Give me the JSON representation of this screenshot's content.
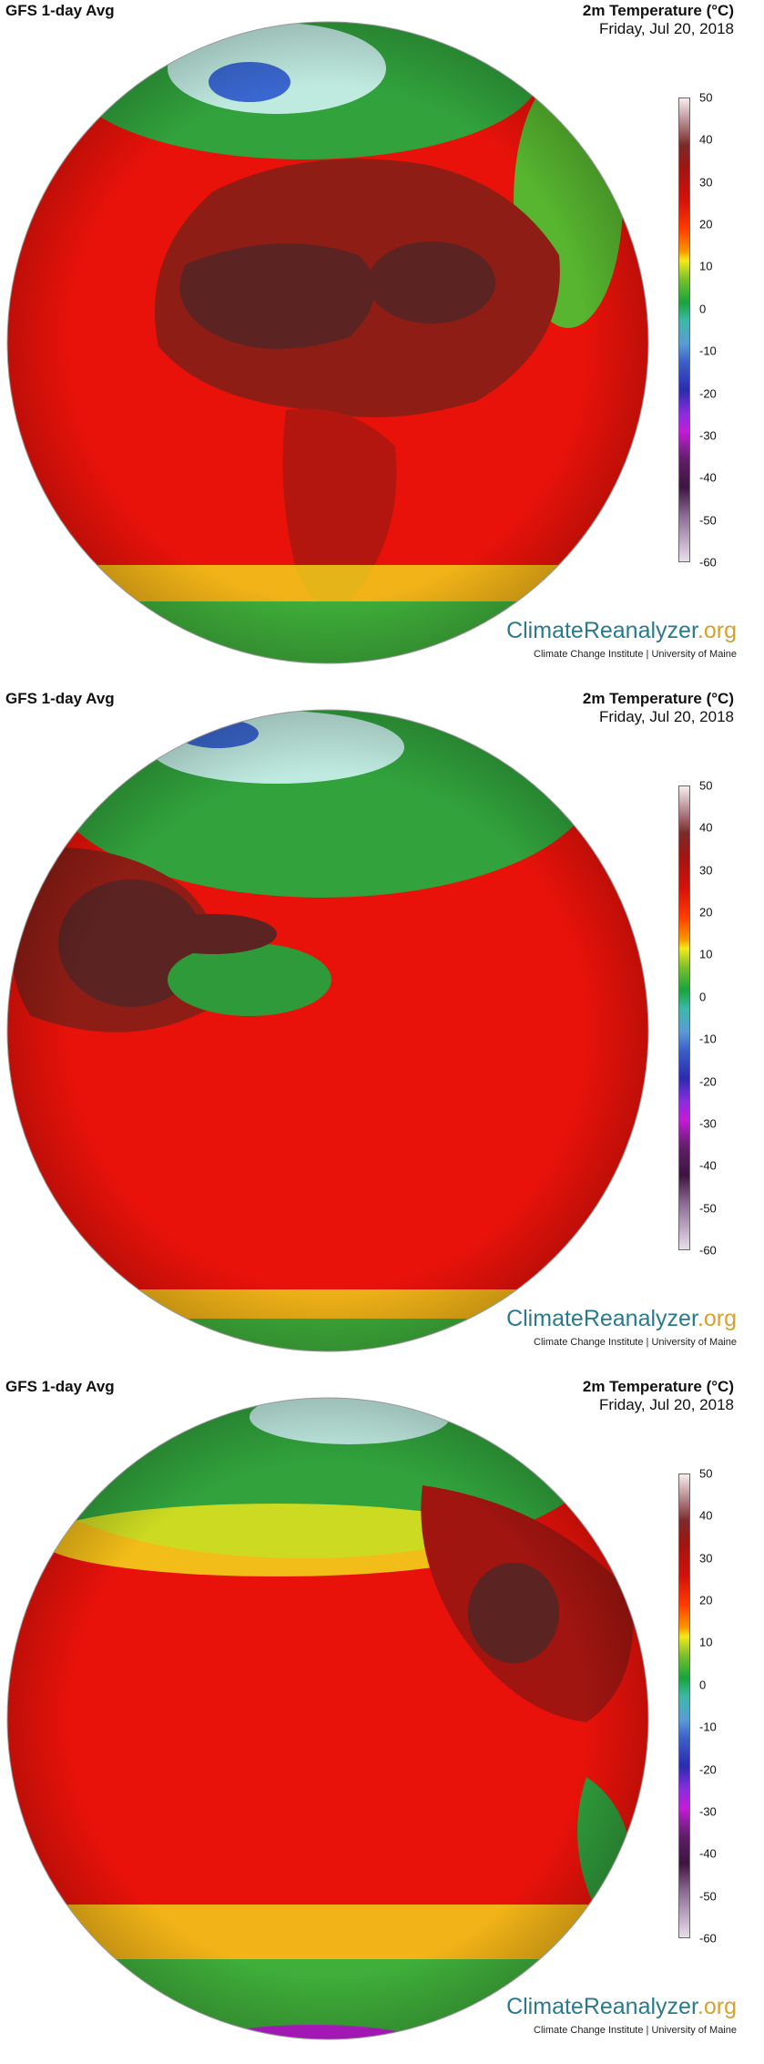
{
  "panels": [
    {
      "model_label": "GFS 1-day Avg",
      "variable_title": "2m Temperature (°C)",
      "date": "Friday, Jul 20, 2018",
      "brand_primary": "ClimateReanalyzer",
      "brand_suffix": ".org",
      "institution": "Climate Change Institute | University of Maine",
      "view": "europe-africa"
    },
    {
      "model_label": "GFS 1-day Avg",
      "variable_title": "2m Temperature (°C)",
      "date": "Friday, Jul 20, 2018",
      "brand_primary": "ClimateReanalyzer",
      "brand_suffix": ".org",
      "institution": "Climate Change Institute | University of Maine",
      "view": "asia"
    },
    {
      "model_label": "GFS 1-day Avg",
      "variable_title": "2m Temperature (°C)",
      "date": "Friday, Jul 20, 2018",
      "brand_primary": "ClimateReanalyzer",
      "brand_suffix": ".org",
      "institution": "Climate Change Institute | University of Maine",
      "view": "pacific-americas"
    }
  ],
  "colorbar": {
    "ticks": [
      "50",
      "40",
      "30",
      "20",
      "10",
      "0",
      "-10",
      "-20",
      "-30",
      "-40",
      "-50",
      "-60"
    ],
    "range": [
      -60,
      50
    ]
  },
  "colors": {
    "ocean_warm": "#e8120a",
    "hot": "#5b2322",
    "cool_green": "#2f9a3a",
    "ice": "#bfeae0",
    "brand_teal": "#2a7a8c",
    "brand_gold": "#d6a12e"
  }
}
